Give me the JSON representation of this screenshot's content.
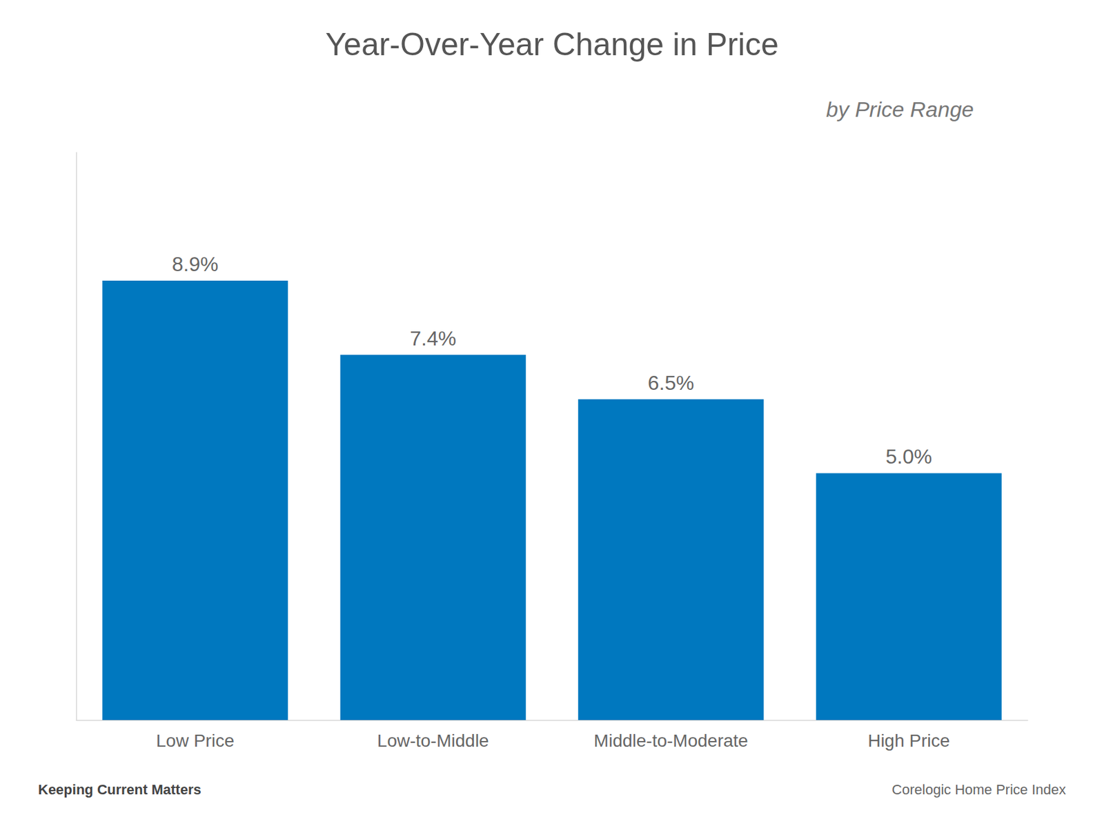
{
  "chart_data": {
    "type": "bar",
    "title": "Year-Over-Year Change in Price",
    "subtitle": "by Price Range",
    "categories": [
      "Low Price",
      "Low-to-Middle",
      "Middle-to-Moderate",
      "High Price"
    ],
    "values": [
      8.9,
      7.4,
      6.5,
      5.0
    ],
    "value_labels": [
      "8.9%",
      "7.4%",
      "6.5%",
      "5.0%"
    ],
    "color": "#0078BF",
    "ylim": [
      0,
      11.5
    ],
    "grid": false,
    "data_labels": true,
    "tick_labels": "x",
    "annotations": [
      "Keeping Current Matters",
      "Corelogic Home Price Index"
    ]
  }
}
